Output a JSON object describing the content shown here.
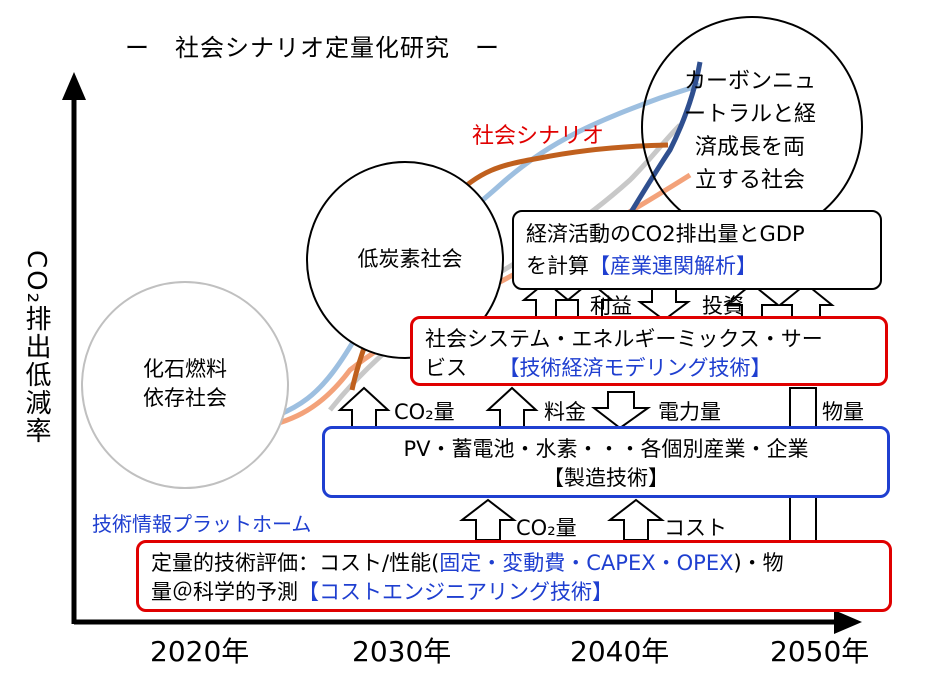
{
  "title": "ー　社会シナリオ定量化研究　ー",
  "axis": {
    "y_label": "CO₂排出低減率",
    "x_ticks": [
      "2020年",
      "2030年",
      "2040年",
      "2050年"
    ]
  },
  "labels": {
    "social_scenario": "社会シナリオ",
    "tech_platform": "技術情報プラットホーム"
  },
  "circles": {
    "fossil": [
      "化石燃料",
      "依存社会"
    ],
    "low_carbon": "低炭素社会",
    "carbon_neutral": [
      "カーボンニュ",
      "ートラルと経",
      "済成長を両",
      "立する社会"
    ]
  },
  "boxes": {
    "economy": {
      "line1": "経済活動のCO2排出量とGDP",
      "line2_prefix": "を計算",
      "line2_highlight": "【産業連関解析】"
    },
    "social_system": {
      "line1": "社会システム・エネルギーミックス・サー",
      "line2_prefix": "ビス　　",
      "line2_highlight": "【技術経済モデリング技術】"
    },
    "industry": {
      "line1": "PV・蓄電池・水素・・・各個別産業・企業",
      "line2": "【製造技術】"
    },
    "tech_eval": {
      "line1_prefix": "定量的技術評価：コスト/性能(",
      "line1_highlight": "固定・変動費・CAPEX・OPEX",
      "line1_suffix": ")・物",
      "line2_prefix": "量＠科学的予測",
      "line2_highlight": "【コストエンジニアリング技術】"
    }
  },
  "arrow_labels": {
    "profit": "利益",
    "investment": "投資",
    "co2_upper": "CO₂量",
    "fee": "料金",
    "power": "電力量",
    "material": "物量",
    "co2_lower": "CO₂量",
    "cost": "コスト"
  },
  "colors": {
    "red": "#e00000",
    "blue": "#1f3fd0",
    "brown": "#c0601e",
    "light_blue": "#9dbfe0",
    "peach": "#f3a27a",
    "gray": "#c8c8c8",
    "dark_blue": "#2f4f8f"
  }
}
